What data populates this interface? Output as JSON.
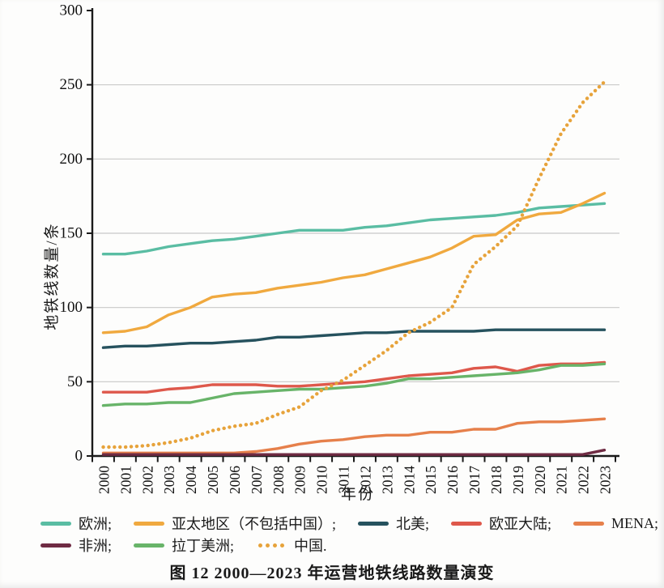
{
  "figure": {
    "caption": "图 12  2000—2023 年运营地铁线路数量演变"
  },
  "chart_data": {
    "type": "line",
    "title": "",
    "xlabel": "年份",
    "ylabel": "地铁线数量/条",
    "ylim": [
      0,
      300
    ],
    "ytick_step": 50,
    "grid": true,
    "legend_position": "bottom",
    "axis_color": "#1a1a1a",
    "grid_color": "#c8c8c8",
    "categories": [
      "2000",
      "2001",
      "2002",
      "2003",
      "2004",
      "2005",
      "2006",
      "2007",
      "2008",
      "2009",
      "2010",
      "2011",
      "2012",
      "2013",
      "2014",
      "2015",
      "2016",
      "2017",
      "2018",
      "2019",
      "2020",
      "2021",
      "2022",
      "2023"
    ],
    "series": [
      {
        "name": "欧洲",
        "legend_label": "欧洲;",
        "color": "#5abda3",
        "style": "solid",
        "values": [
          136,
          136,
          138,
          141,
          143,
          145,
          146,
          148,
          150,
          152,
          152,
          152,
          154,
          155,
          157,
          159,
          160,
          161,
          162,
          164,
          167,
          168,
          169,
          170
        ]
      },
      {
        "name": "亚太地区（不包括中国）",
        "legend_label": "亚太地区（不包括中国）;",
        "color": "#f0a93f",
        "style": "solid",
        "values": [
          83,
          84,
          87,
          95,
          100,
          107,
          109,
          110,
          113,
          115,
          117,
          120,
          122,
          126,
          130,
          134,
          140,
          148,
          149,
          159,
          163,
          164,
          170,
          177
        ]
      },
      {
        "name": "北美",
        "legend_label": "北美;",
        "color": "#26525e",
        "style": "solid",
        "values": [
          73,
          74,
          74,
          75,
          76,
          76,
          77,
          78,
          80,
          80,
          81,
          82,
          83,
          83,
          84,
          84,
          84,
          84,
          85,
          85,
          85,
          85,
          85,
          85
        ]
      },
      {
        "name": "欧亚大陆",
        "legend_label": "欧亚大陆;",
        "color": "#de584b",
        "style": "solid",
        "values": [
          43,
          43,
          43,
          45,
          46,
          48,
          48,
          48,
          47,
          47,
          48,
          49,
          50,
          52,
          54,
          55,
          56,
          59,
          60,
          57,
          61,
          62,
          62,
          63
        ]
      },
      {
        "name": "MENA",
        "legend_label": "MENA;",
        "color": "#e6804b",
        "style": "solid",
        "values": [
          2,
          2,
          2,
          2,
          2,
          2,
          2,
          3,
          5,
          8,
          10,
          11,
          13,
          14,
          14,
          16,
          16,
          18,
          18,
          22,
          23,
          23,
          24,
          25
        ]
      },
      {
        "name": "非洲",
        "legend_label": "非洲;",
        "color": "#6f2b43",
        "style": "solid",
        "values": [
          1,
          1,
          1,
          1,
          1,
          1,
          1,
          1,
          1,
          1,
          1,
          1,
          1,
          1,
          1,
          1,
          1,
          1,
          1,
          1,
          1,
          1,
          1,
          4
        ]
      },
      {
        "name": "拉丁美洲",
        "legend_label": "拉丁美洲;",
        "color": "#68b469",
        "style": "solid",
        "values": [
          34,
          35,
          35,
          36,
          36,
          39,
          42,
          43,
          44,
          45,
          45,
          46,
          47,
          49,
          52,
          52,
          53,
          54,
          55,
          56,
          58,
          61,
          61,
          62
        ]
      },
      {
        "name": "中国",
        "legend_label": "中国.",
        "color": "#e7a33b",
        "style": "dotted",
        "values": [
          6,
          6,
          7,
          9,
          12,
          17,
          20,
          22,
          28,
          33,
          44,
          51,
          61,
          71,
          83,
          90,
          100,
          129,
          141,
          155,
          187,
          217,
          238,
          252
        ]
      }
    ],
    "legend_rows": [
      [
        0,
        1,
        2,
        3,
        4
      ],
      [
        5,
        6,
        7
      ]
    ]
  }
}
